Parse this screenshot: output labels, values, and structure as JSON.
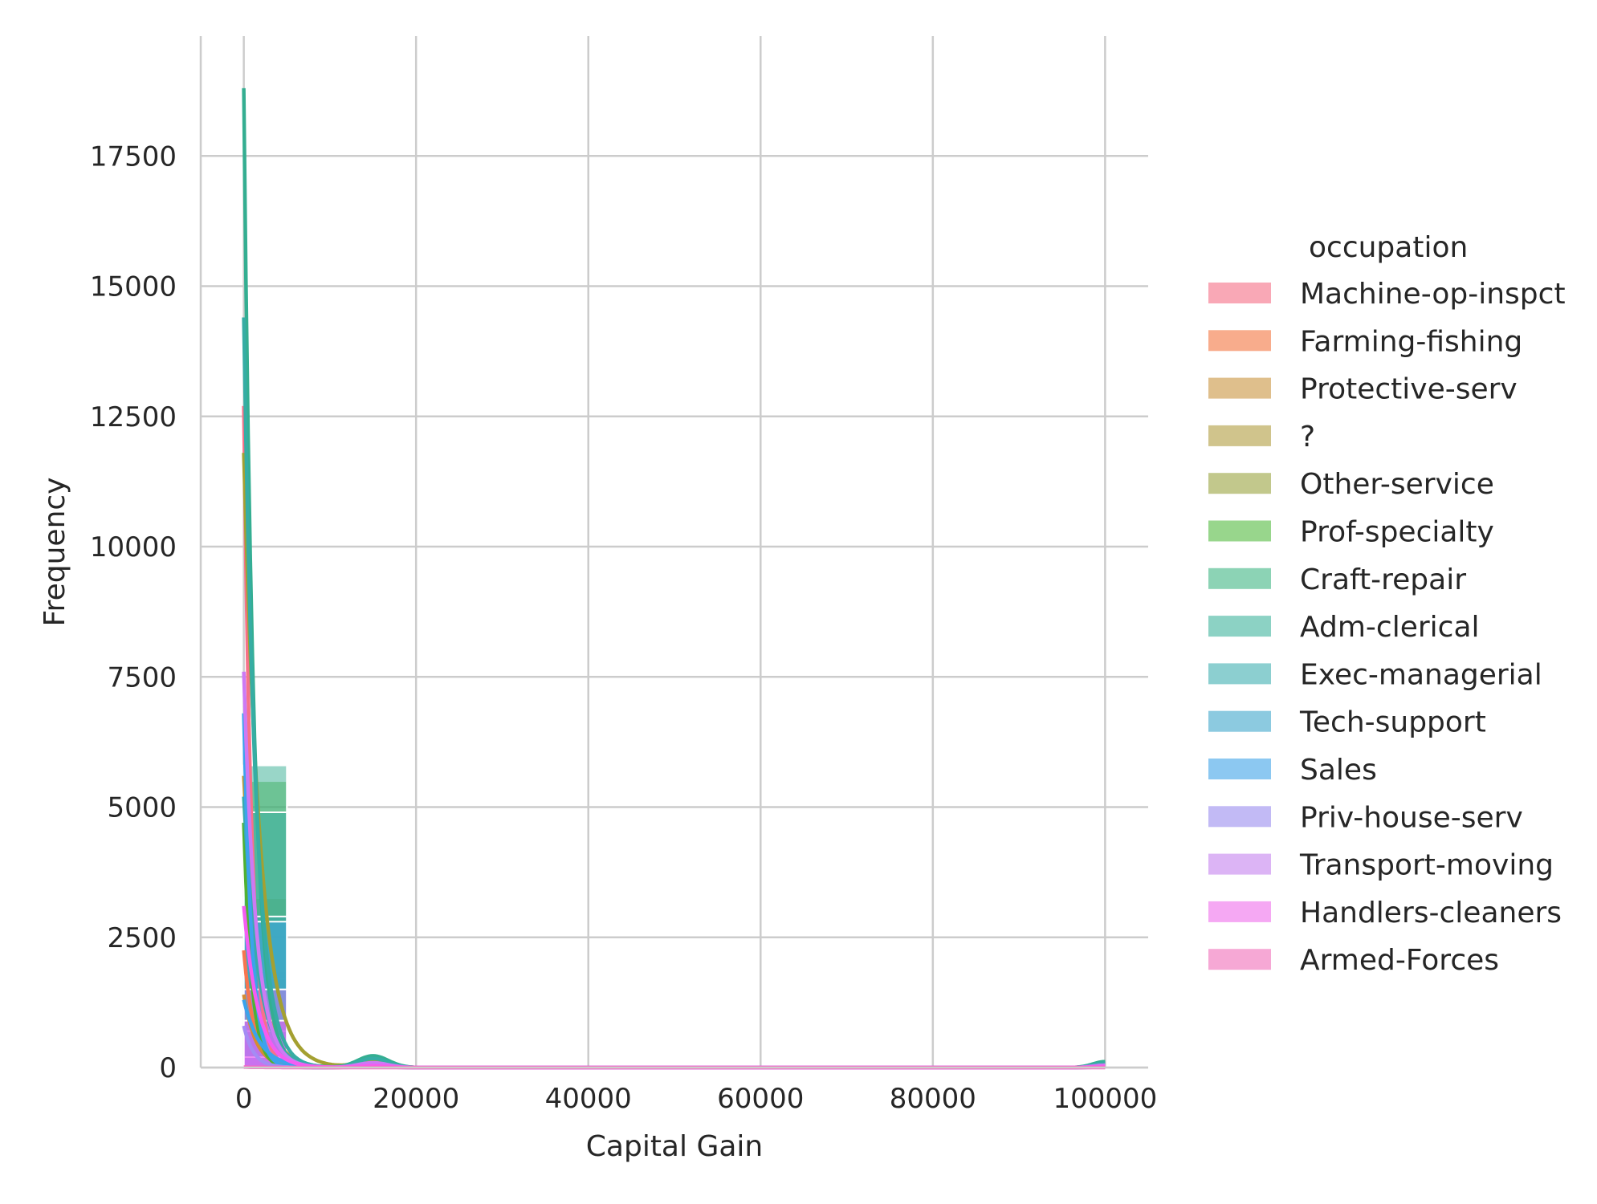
{
  "chart_data": {
    "type": "histogram",
    "xlabel": "Capital Gain",
    "ylabel": "Frequency",
    "xlim": [
      -5000,
      105000
    ],
    "ylim": [
      0,
      19800
    ],
    "xticks": [
      0,
      20000,
      40000,
      60000,
      80000,
      100000
    ],
    "xtick_labels": [
      "0",
      "20000",
      "40000",
      "60000",
      "80000",
      "100000"
    ],
    "yticks": [
      0,
      2500,
      5000,
      7500,
      10000,
      12500,
      15000,
      17500
    ],
    "ytick_labels": [
      "0",
      "2500",
      "5000",
      "7500",
      "10000",
      "12500",
      "15000",
      "17500"
    ],
    "grid": true,
    "kde": true,
    "stacked": false,
    "legend": {
      "title": "occupation",
      "placement": "right"
    },
    "series": [
      {
        "name": "Machine-op-inspct",
        "color": "#f77189",
        "peak": 12700,
        "bin_value": 1850
      },
      {
        "name": "Farming-fishing",
        "color": "#f7754f",
        "peak": 2250,
        "bin_value": 900
      },
      {
        "name": "Protective-serv",
        "color": "#d58c32",
        "peak": 1400,
        "bin_value": 600
      },
      {
        "name": "?",
        "color": "#bb9832",
        "peak": 5600,
        "bin_value": 1700
      },
      {
        "name": "Other-service",
        "color": "#a4a031",
        "peak": 11800,
        "bin_value": 3250
      },
      {
        "name": "Prof-specialty",
        "color": "#50b131",
        "peak": 4700,
        "bin_value": 5500
      },
      {
        "name": "Craft-repair",
        "color": "#34ae91",
        "peak": 18800,
        "bin_value": 5800
      },
      {
        "name": "Adm-clerical",
        "color": "#36ada4",
        "peak": 14400,
        "bin_value": 4900
      },
      {
        "name": "Exec-managerial",
        "color": "#38aaac",
        "peak": 5200,
        "bin_value": 2900
      },
      {
        "name": "Tech-support",
        "color": "#3ba3ec",
        "peak": 1300,
        "bin_value": 700
      },
      {
        "name": "Sales",
        "color": "#3ba3ec",
        "peak": 6800,
        "bin_value": 2800
      },
      {
        "name": "Priv-house-serv",
        "color": "#a48cf4",
        "peak": 800,
        "bin_value": 200
      },
      {
        "name": "Transport-moving",
        "color": "#cc7af4",
        "peak": 7600,
        "bin_value": 1500
      },
      {
        "name": "Handlers-cleaners",
        "color": "#f45cf2",
        "peak": 3100,
        "bin_value": 900
      },
      {
        "name": "Armed-Forces",
        "color": "#f668c2",
        "peak": 8,
        "bin_value": 8
      }
    ],
    "legend_colors": [
      "#f9a8b6",
      "#f8ac8c",
      "#dfbf8c",
      "#d0c48c",
      "#c2c88c",
      "#98d68c",
      "#8cd3b5",
      "#8cd2c4",
      "#8ccfd0",
      "#8ccae0",
      "#8cc8f1",
      "#c2baf5",
      "#dcb4f5",
      "#f5a8f3",
      "#f6a8d5"
    ]
  }
}
